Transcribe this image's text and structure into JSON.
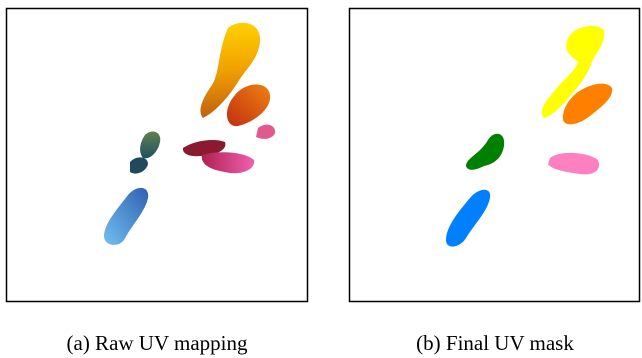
{
  "figure": {
    "panels": [
      {
        "caption": "(a) Raw UV mapping"
      },
      {
        "caption": "(b) Final UV mask"
      }
    ]
  }
}
